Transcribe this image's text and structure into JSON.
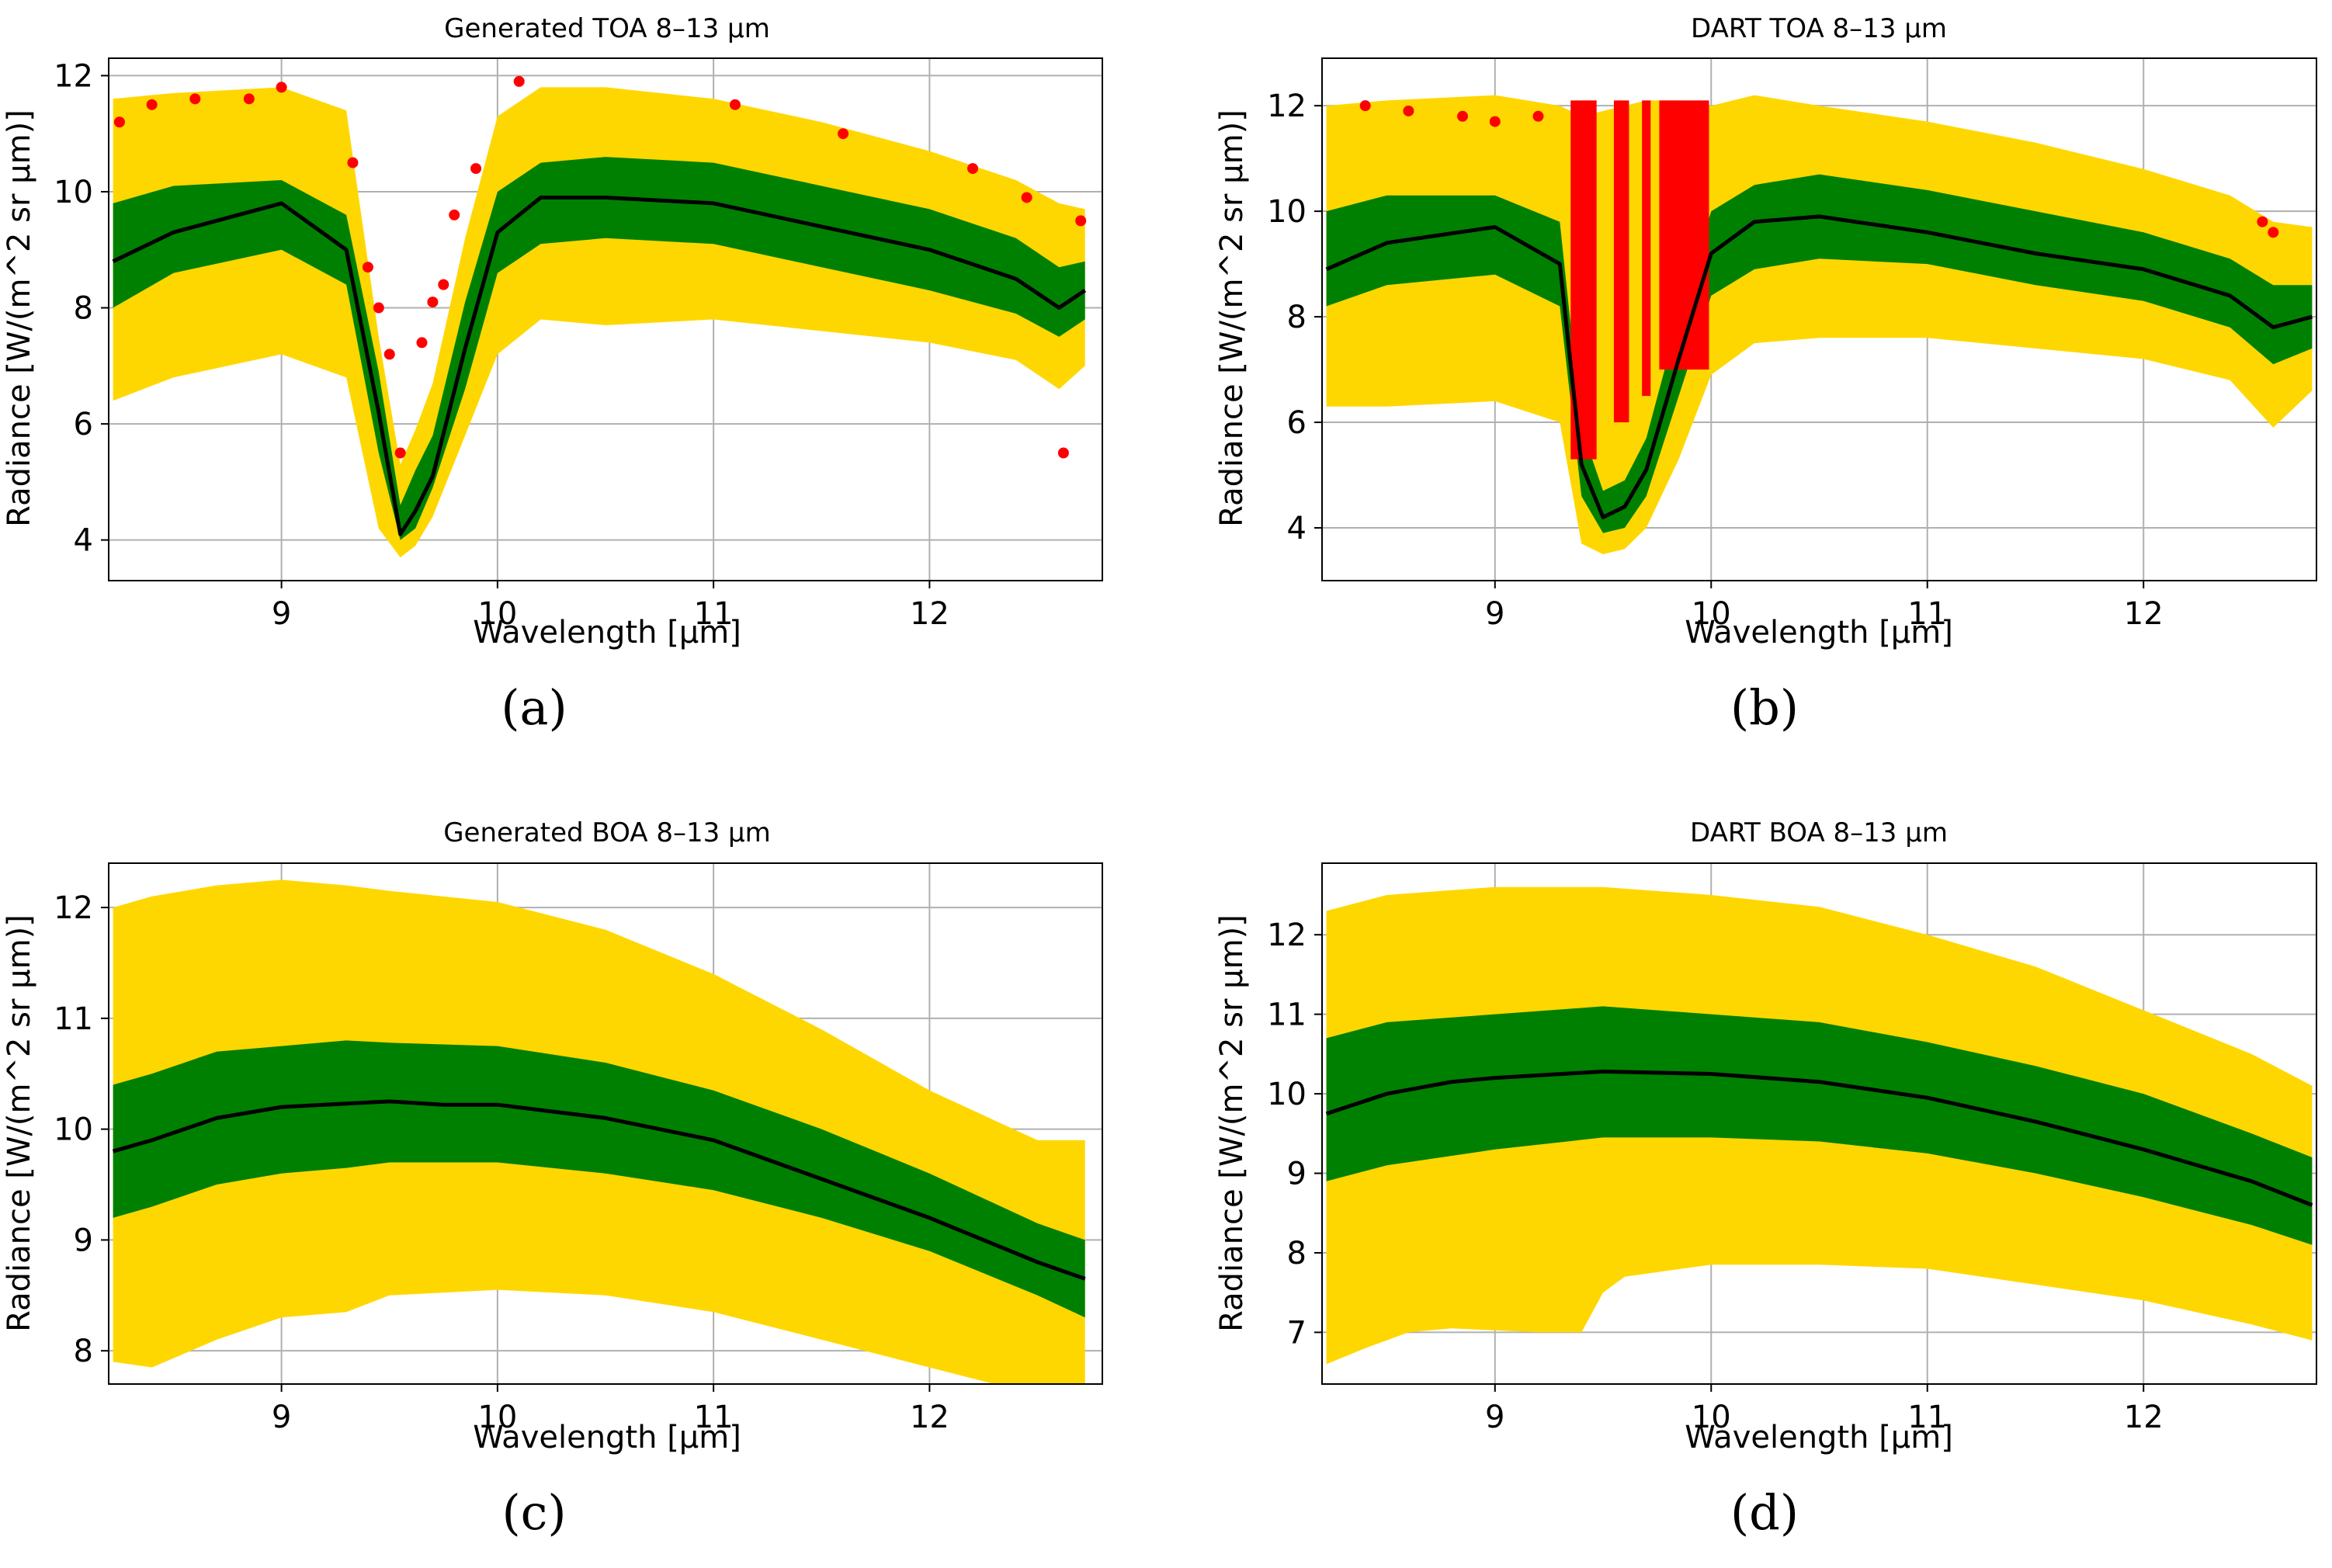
{
  "colors": {
    "range_full": "#FFD700",
    "range_std": "#008000",
    "mean": "#000000",
    "outliers": "#FF0000",
    "grid": "#b0b0b0"
  },
  "chart_data": [
    {
      "panel": "(a)",
      "type": "line",
      "title": "Generated TOA 8–13 μm",
      "xlabel": "Wavelength [μm]",
      "ylabel": "Radiance [W/(m^2 sr μm)]",
      "xlim": [
        8.2,
        12.8
      ],
      "ylim": [
        3.3,
        12.3
      ],
      "xticks": [
        9,
        10,
        11,
        12
      ],
      "yticks": [
        4,
        6,
        8,
        10,
        12
      ],
      "grid": true,
      "has_outliers": true,
      "series_min": {
        "x": [
          8.22,
          8.5,
          9.0,
          9.3,
          9.45,
          9.55,
          9.62,
          9.7,
          9.85,
          10.0,
          10.2,
          10.5,
          11.0,
          11.5,
          12.0,
          12.4,
          12.6,
          12.72
        ],
        "y": [
          6.4,
          6.8,
          7.2,
          6.8,
          4.2,
          3.7,
          3.9,
          4.4,
          5.8,
          7.2,
          7.8,
          7.7,
          7.8,
          7.6,
          7.4,
          7.1,
          6.6,
          7.0
        ]
      },
      "series_std_low": {
        "x": [
          8.22,
          8.5,
          9.0,
          9.3,
          9.45,
          9.55,
          9.62,
          9.7,
          9.85,
          10.0,
          10.2,
          10.5,
          11.0,
          11.5,
          12.0,
          12.4,
          12.6,
          12.72
        ],
        "y": [
          8.0,
          8.6,
          9.0,
          8.4,
          5.5,
          4.0,
          4.2,
          4.9,
          6.6,
          8.6,
          9.1,
          9.2,
          9.1,
          8.7,
          8.3,
          7.9,
          7.5,
          7.8
        ]
      },
      "series_mean": {
        "x": [
          8.22,
          8.5,
          9.0,
          9.3,
          9.45,
          9.55,
          9.62,
          9.7,
          9.85,
          10.0,
          10.2,
          10.5,
          11.0,
          11.5,
          12.0,
          12.4,
          12.6,
          12.72
        ],
        "y": [
          8.8,
          9.3,
          9.8,
          9.0,
          6.2,
          4.1,
          4.5,
          5.1,
          7.3,
          9.3,
          9.9,
          9.9,
          9.8,
          9.4,
          9.0,
          8.5,
          8.0,
          8.3
        ]
      },
      "series_std_high": {
        "x": [
          8.22,
          8.5,
          9.0,
          9.3,
          9.45,
          9.55,
          9.62,
          9.7,
          9.85,
          10.0,
          10.2,
          10.5,
          11.0,
          11.5,
          12.0,
          12.4,
          12.6,
          12.72
        ],
        "y": [
          9.8,
          10.1,
          10.2,
          9.6,
          6.9,
          4.6,
          5.2,
          5.8,
          8.1,
          10.0,
          10.5,
          10.6,
          10.5,
          10.1,
          9.7,
          9.2,
          8.7,
          8.8
        ]
      },
      "series_max": {
        "x": [
          8.22,
          8.5,
          9.0,
          9.3,
          9.45,
          9.55,
          9.62,
          9.7,
          9.85,
          10.0,
          10.2,
          10.5,
          11.0,
          11.5,
          12.0,
          12.4,
          12.6,
          12.72
        ],
        "y": [
          11.6,
          11.7,
          11.8,
          11.4,
          7.5,
          5.3,
          5.9,
          6.7,
          9.2,
          11.3,
          11.8,
          11.8,
          11.6,
          11.2,
          10.7,
          10.2,
          9.8,
          9.7
        ]
      },
      "outliers": {
        "x": [
          8.25,
          8.4,
          8.6,
          8.85,
          9.0,
          9.33,
          9.4,
          9.45,
          9.5,
          9.55,
          9.65,
          9.7,
          9.75,
          9.8,
          9.9,
          10.1,
          11.1,
          11.6,
          12.2,
          12.45,
          12.62,
          12.7
        ],
        "y": [
          11.2,
          11.5,
          11.6,
          11.6,
          11.8,
          10.5,
          8.7,
          8.0,
          7.2,
          5.5,
          7.4,
          8.1,
          8.4,
          9.6,
          10.4,
          11.9,
          11.5,
          11.0,
          10.4,
          9.9,
          5.5,
          9.5
        ]
      }
    },
    {
      "panel": "(b)",
      "type": "line",
      "title": "DART TOA 8–13 μm",
      "xlabel": "Wavelength [μm]",
      "ylabel": "Radiance [W/(m^2 sr μm)]",
      "xlim": [
        8.2,
        12.8
      ],
      "ylim": [
        3.0,
        12.9
      ],
      "xticks": [
        9,
        10,
        11,
        12
      ],
      "yticks": [
        4,
        6,
        8,
        10,
        12
      ],
      "grid": true,
      "has_outliers": true,
      "series_min": {
        "x": [
          8.22,
          8.5,
          9.0,
          9.3,
          9.4,
          9.5,
          9.6,
          9.7,
          9.85,
          10.0,
          10.2,
          10.5,
          11.0,
          11.5,
          12.0,
          12.4,
          12.6,
          12.78
        ],
        "y": [
          6.3,
          6.3,
          6.4,
          6.0,
          3.7,
          3.5,
          3.6,
          4.0,
          5.3,
          6.9,
          7.5,
          7.6,
          7.6,
          7.4,
          7.2,
          6.8,
          5.9,
          6.6
        ]
      },
      "series_std_low": {
        "x": [
          8.22,
          8.5,
          9.0,
          9.3,
          9.4,
          9.5,
          9.6,
          9.7,
          9.85,
          10.0,
          10.2,
          10.5,
          11.0,
          11.5,
          12.0,
          12.4,
          12.6,
          12.78
        ],
        "y": [
          8.2,
          8.6,
          8.8,
          8.2,
          4.6,
          3.9,
          4.0,
          4.6,
          6.5,
          8.4,
          8.9,
          9.1,
          9.0,
          8.6,
          8.3,
          7.8,
          7.1,
          7.4
        ]
      },
      "series_mean": {
        "x": [
          8.22,
          8.5,
          9.0,
          9.3,
          9.4,
          9.5,
          9.6,
          9.7,
          9.85,
          10.0,
          10.2,
          10.5,
          11.0,
          11.5,
          12.0,
          12.4,
          12.6,
          12.78
        ],
        "y": [
          8.9,
          9.4,
          9.7,
          9.0,
          5.2,
          4.2,
          4.4,
          5.1,
          7.2,
          9.2,
          9.8,
          9.9,
          9.6,
          9.2,
          8.9,
          8.4,
          7.8,
          8.0
        ]
      },
      "series_std_high": {
        "x": [
          8.22,
          8.5,
          9.0,
          9.3,
          9.4,
          9.5,
          9.6,
          9.7,
          9.85,
          10.0,
          10.2,
          10.5,
          11.0,
          11.5,
          12.0,
          12.4,
          12.6,
          12.78
        ],
        "y": [
          10.0,
          10.3,
          10.3,
          9.8,
          5.9,
          4.7,
          4.9,
          5.7,
          8.0,
          10.0,
          10.5,
          10.7,
          10.4,
          10.0,
          9.6,
          9.1,
          8.6,
          8.6
        ]
      },
      "series_max": {
        "x": [
          8.22,
          8.5,
          9.0,
          9.3,
          9.4,
          9.5,
          9.6,
          9.7,
          9.85,
          10.0,
          10.2,
          10.5,
          11.0,
          11.5,
          12.0,
          12.4,
          12.6,
          12.78
        ],
        "y": [
          12.0,
          12.1,
          12.2,
          12.0,
          11.8,
          11.9,
          12.0,
          12.1,
          12.1,
          12.0,
          12.2,
          12.0,
          11.7,
          11.3,
          10.8,
          10.3,
          9.8,
          9.7
        ]
      },
      "outlier_bands": [
        {
          "x0": 9.35,
          "x1": 9.47,
          "y0": 5.3,
          "y1": 12.1
        },
        {
          "x0": 9.55,
          "x1": 9.62,
          "y0": 6.0,
          "y1": 12.1
        },
        {
          "x0": 9.68,
          "x1": 9.72,
          "y0": 6.5,
          "y1": 12.1
        },
        {
          "x0": 9.76,
          "x1": 9.99,
          "y0": 7.0,
          "y1": 12.1
        }
      ],
      "outliers": {
        "x": [
          8.4,
          8.6,
          8.85,
          9.0,
          9.2,
          12.55,
          12.6
        ],
        "y": [
          12.0,
          11.9,
          11.8,
          11.7,
          11.8,
          9.8,
          9.6
        ]
      }
    },
    {
      "panel": "(c)",
      "type": "line",
      "title": "Generated BOA 8–13 μm",
      "xlabel": "Wavelength [μm]",
      "ylabel": "Radiance [W/(m^2 sr μm)]",
      "xlim": [
        8.2,
        12.8
      ],
      "ylim": [
        7.7,
        12.4
      ],
      "xticks": [
        9,
        10,
        11,
        12
      ],
      "yticks": [
        8,
        9,
        10,
        11,
        12
      ],
      "grid": true,
      "has_outliers": false,
      "series_min": {
        "x": [
          8.22,
          8.4,
          8.7,
          9.0,
          9.3,
          9.5,
          10.0,
          10.5,
          11.0,
          11.5,
          12.0,
          12.5,
          12.72
        ],
        "y": [
          7.9,
          7.85,
          8.1,
          8.3,
          8.35,
          8.5,
          8.55,
          8.5,
          8.35,
          8.1,
          7.85,
          7.6,
          7.5
        ]
      },
      "series_std_low": {
        "x": [
          8.22,
          8.4,
          8.7,
          9.0,
          9.3,
          9.5,
          10.0,
          10.5,
          11.0,
          11.5,
          12.0,
          12.5,
          12.72
        ],
        "y": [
          9.2,
          9.3,
          9.5,
          9.6,
          9.65,
          9.7,
          9.7,
          9.6,
          9.45,
          9.2,
          8.9,
          8.5,
          8.3
        ]
      },
      "series_mean": {
        "x": [
          8.22,
          8.4,
          8.7,
          9.0,
          9.3,
          9.5,
          9.75,
          10.0,
          10.5,
          11.0,
          11.5,
          12.0,
          12.5,
          12.72
        ],
        "y": [
          9.8,
          9.9,
          10.1,
          10.2,
          10.23,
          10.25,
          10.22,
          10.22,
          10.1,
          9.9,
          9.55,
          9.2,
          8.8,
          8.65
        ]
      },
      "series_std_high": {
        "x": [
          8.22,
          8.4,
          8.7,
          9.0,
          9.3,
          9.5,
          10.0,
          10.5,
          11.0,
          11.5,
          12.0,
          12.5,
          12.72
        ],
        "y": [
          10.4,
          10.5,
          10.7,
          10.75,
          10.8,
          10.78,
          10.75,
          10.6,
          10.35,
          10.0,
          9.6,
          9.15,
          9.0
        ]
      },
      "series_max": {
        "x": [
          8.22,
          8.4,
          8.7,
          9.0,
          9.3,
          9.5,
          10.0,
          10.5,
          11.0,
          11.5,
          12.0,
          12.5,
          12.72
        ],
        "y": [
          12.0,
          12.1,
          12.2,
          12.25,
          12.2,
          12.15,
          12.05,
          11.8,
          11.4,
          10.9,
          10.35,
          9.9,
          9.9
        ]
      }
    },
    {
      "panel": "(d)",
      "type": "line",
      "title": "DART BOA 8–13 μm",
      "xlabel": "Wavelength [μm]",
      "ylabel": "Radiance [W/(m^2 sr μm)]",
      "xlim": [
        8.2,
        12.8
      ],
      "ylim": [
        6.35,
        12.9
      ],
      "xticks": [
        9,
        10,
        11,
        12
      ],
      "yticks": [
        7,
        8,
        9,
        10,
        11,
        12
      ],
      "grid": true,
      "has_outliers": false,
      "series_min": {
        "x": [
          8.22,
          8.4,
          8.6,
          8.8,
          9.2,
          9.4,
          9.5,
          9.6,
          10.0,
          10.5,
          11.0,
          11.5,
          12.0,
          12.5,
          12.78
        ],
        "y": [
          6.6,
          6.8,
          7.0,
          7.05,
          7.0,
          7.0,
          7.5,
          7.7,
          7.85,
          7.85,
          7.8,
          7.6,
          7.4,
          7.1,
          6.9
        ]
      },
      "series_std_low": {
        "x": [
          8.22,
          8.5,
          9.0,
          9.5,
          10.0,
          10.5,
          11.0,
          11.5,
          12.0,
          12.5,
          12.78
        ],
        "y": [
          8.9,
          9.1,
          9.3,
          9.45,
          9.45,
          9.4,
          9.25,
          9.0,
          8.7,
          8.35,
          8.1
        ]
      },
      "series_mean": {
        "x": [
          8.22,
          8.5,
          8.8,
          9.0,
          9.5,
          10.0,
          10.5,
          11.0,
          11.5,
          12.0,
          12.5,
          12.78
        ],
        "y": [
          9.75,
          10.0,
          10.15,
          10.2,
          10.28,
          10.25,
          10.15,
          9.95,
          9.65,
          9.3,
          8.9,
          8.6
        ]
      },
      "series_std_high": {
        "x": [
          8.22,
          8.5,
          9.0,
          9.5,
          10.0,
          10.5,
          11.0,
          11.5,
          12.0,
          12.5,
          12.78
        ],
        "y": [
          10.7,
          10.9,
          11.0,
          11.1,
          11.0,
          10.9,
          10.65,
          10.35,
          10.0,
          9.5,
          9.2
        ]
      },
      "series_max": {
        "x": [
          8.22,
          8.5,
          9.0,
          9.5,
          10.0,
          10.5,
          11.0,
          11.5,
          12.0,
          12.5,
          12.78
        ],
        "y": [
          12.3,
          12.5,
          12.6,
          12.6,
          12.5,
          12.35,
          12.0,
          11.6,
          11.05,
          10.5,
          10.1
        ]
      }
    }
  ]
}
